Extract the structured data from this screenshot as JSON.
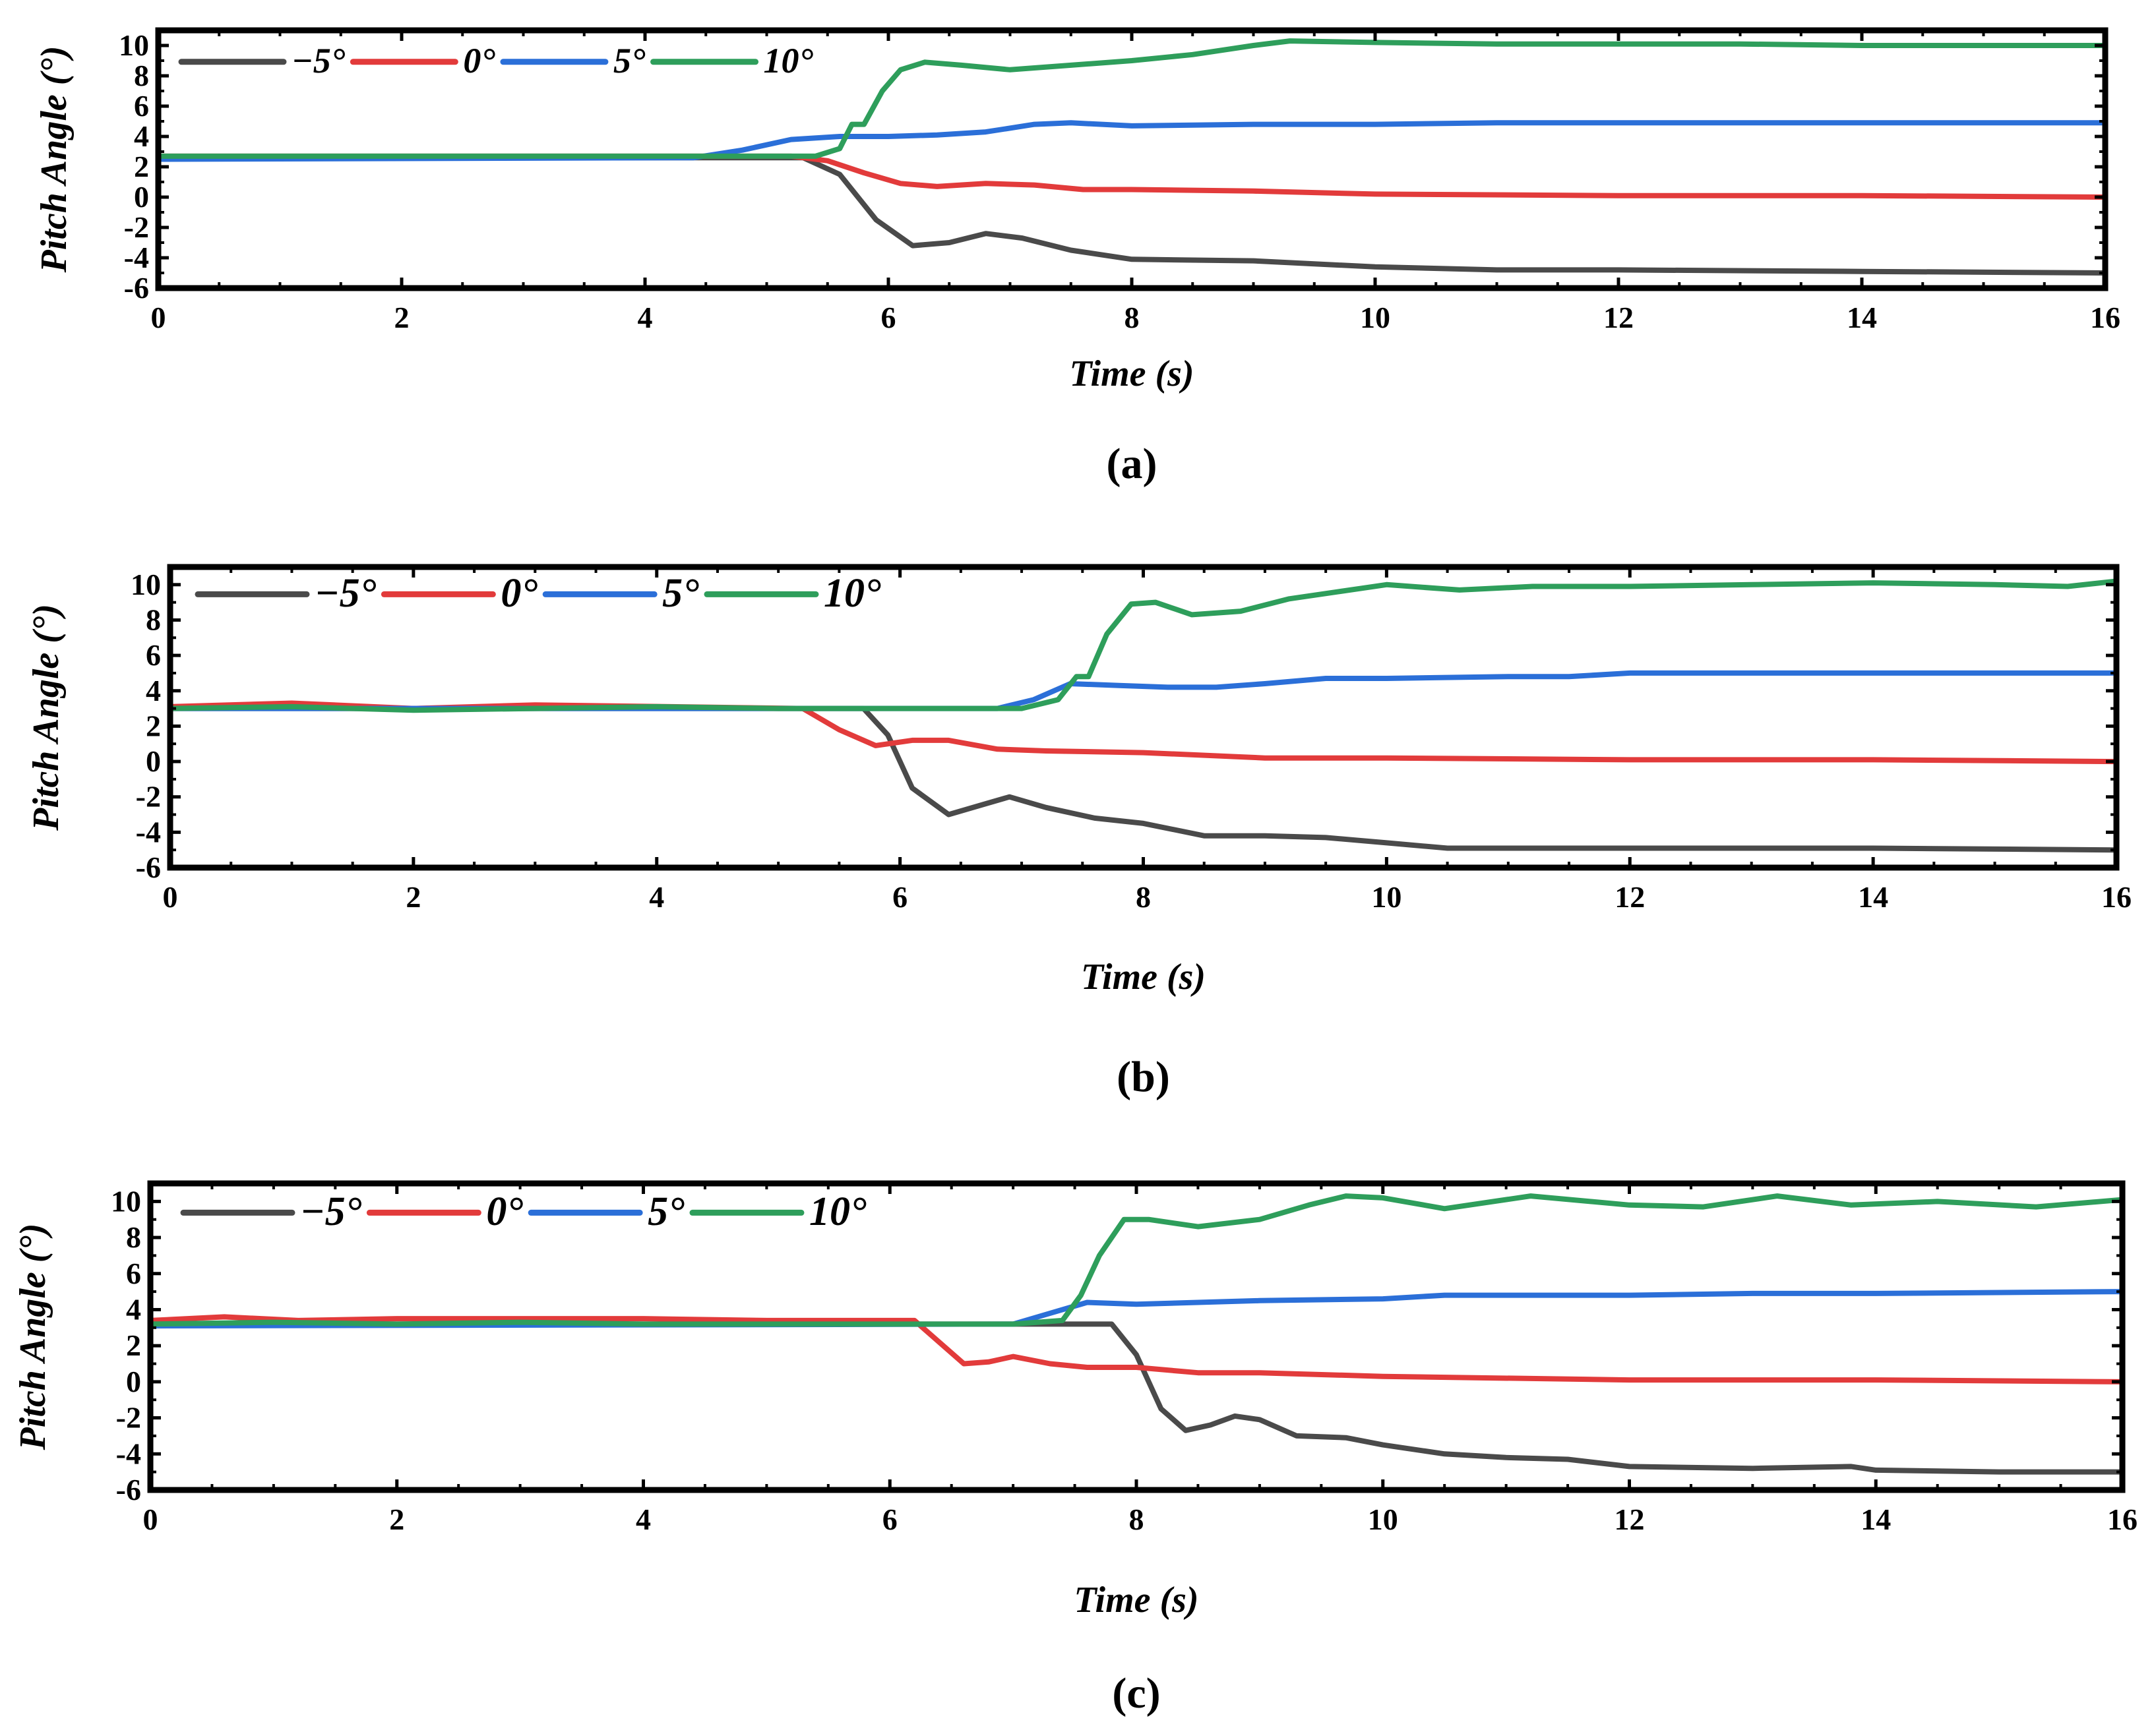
{
  "figure": {
    "colors": {
      "neg5": "#4a4a4a",
      "zero": "#e23b3b",
      "pos5": "#2b6fd8",
      "pos10": "#2e9e5b"
    },
    "legend_labels": [
      "−5°",
      "0°",
      "5°",
      "10°"
    ],
    "captions": [
      "(a)",
      "(b)",
      "(c)"
    ]
  },
  "chart_data": [
    {
      "type": "line",
      "panel": "(a)",
      "xlabel": "Time (s)",
      "ylabel": "Pitch Angle (°)",
      "xlim": [
        0,
        16
      ],
      "ylim": [
        -6,
        11
      ],
      "xticks": [
        0,
        2,
        4,
        6,
        8,
        10,
        12,
        14,
        16
      ],
      "yticks": [
        -6,
        -4,
        -2,
        0,
        2,
        4,
        6,
        8,
        10
      ],
      "legend_position": "top-left",
      "series": [
        {
          "name": "−5°",
          "color_key": "neg5",
          "x": [
            0,
            5.3,
            5.6,
            5.9,
            6.2,
            6.5,
            6.8,
            7.1,
            7.5,
            8.0,
            9.0,
            10.0,
            11.0,
            12.0,
            14.0,
            16.0
          ],
          "y": [
            2.6,
            2.6,
            1.5,
            -1.5,
            -3.2,
            -3.0,
            -2.4,
            -2.7,
            -3.5,
            -4.1,
            -4.2,
            -4.6,
            -4.8,
            -4.8,
            -4.9,
            -5.0
          ]
        },
        {
          "name": "0°",
          "color_key": "zero",
          "x": [
            0,
            5.2,
            5.5,
            5.8,
            6.1,
            6.4,
            6.8,
            7.2,
            7.6,
            8.0,
            9.0,
            10.0,
            12.0,
            14.0,
            16.0
          ],
          "y": [
            2.7,
            2.7,
            2.4,
            1.6,
            0.9,
            0.7,
            0.9,
            0.8,
            0.5,
            0.5,
            0.4,
            0.2,
            0.1,
            0.1,
            0.0
          ]
        },
        {
          "name": "5°",
          "color_key": "pos5",
          "x": [
            0,
            4.4,
            4.8,
            5.2,
            5.6,
            6.0,
            6.4,
            6.8,
            7.2,
            7.5,
            8.0,
            9.0,
            10.0,
            11.0,
            12.0,
            14.0,
            16.0
          ],
          "y": [
            2.5,
            2.6,
            3.1,
            3.8,
            4.0,
            4.0,
            4.1,
            4.3,
            4.8,
            4.9,
            4.7,
            4.8,
            4.8,
            4.9,
            4.9,
            4.9,
            4.9
          ]
        },
        {
          "name": "10°",
          "color_key": "pos10",
          "x": [
            0,
            5.4,
            5.6,
            5.7,
            5.8,
            5.95,
            6.1,
            6.3,
            6.6,
            7.0,
            7.5,
            8.0,
            8.5,
            9.0,
            9.3,
            10.0,
            11.0,
            12.0,
            13.0,
            14.0,
            15.0,
            16.0
          ],
          "y": [
            2.7,
            2.7,
            3.2,
            4.8,
            4.8,
            7.0,
            8.4,
            8.9,
            8.7,
            8.4,
            8.7,
            9.0,
            9.4,
            10.0,
            10.3,
            10.2,
            10.1,
            10.1,
            10.1,
            10.0,
            10.0,
            10.0
          ]
        }
      ]
    },
    {
      "type": "line",
      "panel": "(b)",
      "xlabel": "Time (s)",
      "ylabel": "Pitch Angle (°)",
      "xlim": [
        0,
        16
      ],
      "ylim": [
        -6,
        11
      ],
      "xticks": [
        0,
        2,
        4,
        6,
        8,
        10,
        12,
        14,
        16
      ],
      "yticks": [
        -6,
        -4,
        -2,
        0,
        2,
        4,
        6,
        8,
        10
      ],
      "legend_position": "top-left",
      "series": [
        {
          "name": "−5°",
          "color_key": "neg5",
          "x": [
            0,
            5.7,
            5.9,
            6.1,
            6.4,
            6.7,
            6.9,
            7.2,
            7.6,
            8.0,
            8.5,
            9.0,
            9.5,
            10.0,
            10.5,
            12.0,
            14.0,
            16.0
          ],
          "y": [
            3.0,
            3.0,
            1.5,
            -1.5,
            -3.0,
            -2.4,
            -2.0,
            -2.6,
            -3.2,
            -3.5,
            -4.2,
            -4.2,
            -4.3,
            -4.6,
            -4.9,
            -4.9,
            -4.9,
            -5.0
          ]
        },
        {
          "name": "0°",
          "color_key": "zero",
          "x": [
            0,
            1.0,
            2.0,
            3.0,
            5.2,
            5.5,
            5.8,
            6.1,
            6.4,
            6.8,
            7.2,
            8.0,
            9.0,
            10.0,
            12.0,
            14.0,
            16.0
          ],
          "y": [
            3.1,
            3.3,
            3.0,
            3.2,
            3.0,
            1.8,
            0.9,
            1.2,
            1.2,
            0.7,
            0.6,
            0.5,
            0.2,
            0.2,
            0.1,
            0.1,
            0.0
          ]
        },
        {
          "name": "5°",
          "color_key": "pos5",
          "x": [
            0,
            6.8,
            7.1,
            7.4,
            7.8,
            8.2,
            8.6,
            9.0,
            9.5,
            10.0,
            11.0,
            11.5,
            12.0,
            14.0,
            16.0
          ],
          "y": [
            3.0,
            3.0,
            3.5,
            4.4,
            4.3,
            4.2,
            4.2,
            4.4,
            4.7,
            4.7,
            4.8,
            4.8,
            5.0,
            5.0,
            5.0
          ]
        },
        {
          "name": "10°",
          "color_key": "pos10",
          "x": [
            0,
            1.0,
            2.0,
            3.0,
            4.0,
            5.0,
            6.0,
            7.0,
            7.3,
            7.45,
            7.55,
            7.7,
            7.9,
            8.1,
            8.4,
            8.8,
            9.2,
            9.6,
            10.0,
            10.6,
            11.2,
            12.0,
            13.0,
            14.0,
            15.0,
            15.6,
            16.0
          ],
          "y": [
            3.0,
            3.1,
            2.9,
            3.0,
            3.1,
            3.0,
            3.0,
            3.0,
            3.5,
            4.8,
            4.8,
            7.2,
            8.9,
            9.0,
            8.3,
            8.5,
            9.2,
            9.6,
            10.0,
            9.7,
            9.9,
            9.9,
            10.0,
            10.1,
            10.0,
            9.9,
            10.2
          ]
        }
      ]
    },
    {
      "type": "line",
      "panel": "(c)",
      "xlabel": "Time (s)",
      "ylabel": "Pitch Angle (°)",
      "xlim": [
        0,
        16
      ],
      "ylim": [
        -6,
        11
      ],
      "xticks": [
        0,
        2,
        4,
        6,
        8,
        10,
        12,
        14,
        16
      ],
      "yticks": [
        -6,
        -4,
        -2,
        0,
        2,
        4,
        6,
        8,
        10
      ],
      "legend_position": "top-left",
      "series": [
        {
          "name": "−5°",
          "color_key": "neg5",
          "x": [
            0,
            7.8,
            8.0,
            8.2,
            8.4,
            8.6,
            8.8,
            9.0,
            9.3,
            9.7,
            10.0,
            10.5,
            11.0,
            11.5,
            12.0,
            13.0,
            13.8,
            14.0,
            15.0,
            16.0
          ],
          "y": [
            3.2,
            3.2,
            1.5,
            -1.5,
            -2.7,
            -2.4,
            -1.9,
            -2.1,
            -3.0,
            -3.1,
            -3.5,
            -4.0,
            -4.2,
            -4.3,
            -4.7,
            -4.8,
            -4.7,
            -4.9,
            -5.0,
            -5.0
          ]
        },
        {
          "name": "0°",
          "color_key": "zero",
          "x": [
            0,
            0.6,
            1.2,
            2.0,
            3.0,
            4.0,
            5.0,
            6.2,
            6.4,
            6.6,
            6.8,
            7.0,
            7.3,
            7.6,
            8.0,
            8.5,
            9.0,
            10.0,
            12.0,
            14.0,
            16.0
          ],
          "y": [
            3.4,
            3.6,
            3.4,
            3.5,
            3.5,
            3.5,
            3.4,
            3.4,
            2.2,
            1.0,
            1.1,
            1.4,
            1.0,
            0.8,
            0.8,
            0.5,
            0.5,
            0.3,
            0.1,
            0.1,
            0.0
          ]
        },
        {
          "name": "5°",
          "color_key": "pos5",
          "x": [
            0,
            7.0,
            7.3,
            7.6,
            8.0,
            8.5,
            9.0,
            10.0,
            10.5,
            11.0,
            12.0,
            13.0,
            14.0,
            16.0
          ],
          "y": [
            3.1,
            3.2,
            3.8,
            4.4,
            4.3,
            4.4,
            4.5,
            4.6,
            4.8,
            4.8,
            4.8,
            4.9,
            4.9,
            5.0
          ]
        },
        {
          "name": "10°",
          "color_key": "pos10",
          "x": [
            0,
            1.0,
            2.0,
            3.0,
            4.0,
            5.0,
            6.0,
            7.0,
            7.4,
            7.55,
            7.7,
            7.9,
            8.1,
            8.5,
            9.0,
            9.4,
            9.7,
            10.0,
            10.5,
            11.2,
            12.0,
            12.6,
            13.2,
            13.8,
            14.5,
            15.3,
            16.0
          ],
          "y": [
            3.2,
            3.3,
            3.2,
            3.3,
            3.2,
            3.2,
            3.2,
            3.2,
            3.4,
            4.8,
            7.0,
            9.0,
            9.0,
            8.6,
            9.0,
            9.8,
            10.3,
            10.2,
            9.6,
            10.3,
            9.8,
            9.7,
            10.3,
            9.8,
            10.0,
            9.7,
            10.1
          ]
        }
      ]
    }
  ]
}
